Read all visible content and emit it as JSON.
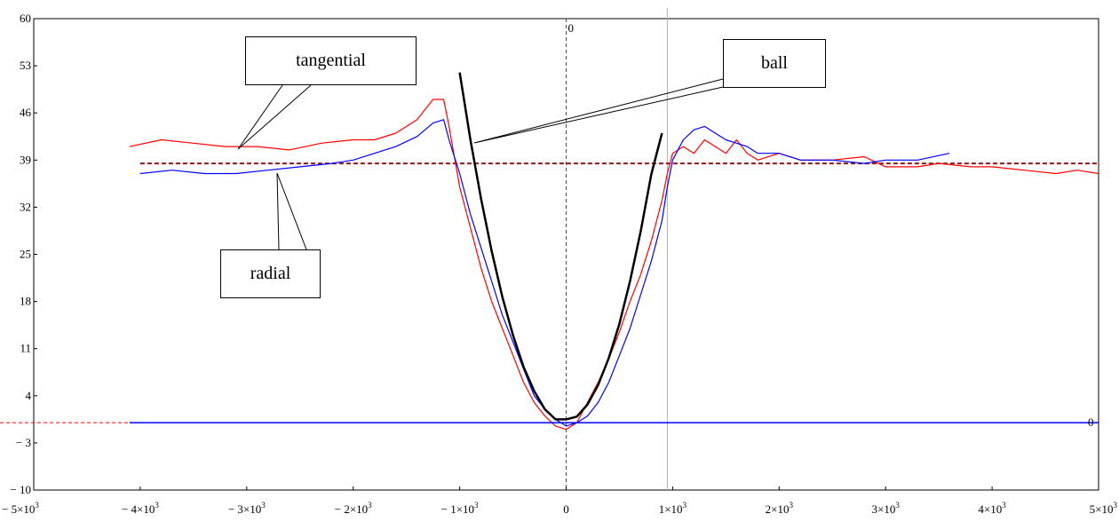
{
  "chart_data": {
    "type": "line",
    "title": "",
    "xlabel": "",
    "ylabel": "",
    "xlim": [
      -5000,
      5000
    ],
    "ylim": [
      -10,
      60
    ],
    "grid": false,
    "x_ticks": [
      {
        "value": -5000,
        "mant": "− 5×10",
        "exp": "3"
      },
      {
        "value": -4000,
        "mant": "− 4×10",
        "exp": "3"
      },
      {
        "value": -3000,
        "mant": "− 3×10",
        "exp": "3"
      },
      {
        "value": -2000,
        "mant": "− 2×10",
        "exp": "3"
      },
      {
        "value": -1000,
        "mant": "− 1×10",
        "exp": "3"
      },
      {
        "value": 0,
        "mant": "0",
        "exp": ""
      },
      {
        "value": 1000,
        "mant": "1×10",
        "exp": "3"
      },
      {
        "value": 2000,
        "mant": "2×10",
        "exp": "3"
      },
      {
        "value": 3000,
        "mant": "3×10",
        "exp": "3"
      },
      {
        "value": 4000,
        "mant": "4×10",
        "exp": "3"
      },
      {
        "value": 5000,
        "mant": "5×10",
        "exp": "3"
      }
    ],
    "y_ticks": [
      {
        "value": 60,
        "label": "60"
      },
      {
        "value": 53,
        "label": "53"
      },
      {
        "value": 46,
        "label": "46"
      },
      {
        "value": 39,
        "label": "39"
      },
      {
        "value": 32,
        "label": "32"
      },
      {
        "value": 25,
        "label": "25"
      },
      {
        "value": 18,
        "label": "18"
      },
      {
        "value": 11,
        "label": "11"
      },
      {
        "value": 4,
        "label": "4"
      },
      {
        "value": -3,
        "label": "− 3"
      },
      {
        "value": -10,
        "label": "− 10"
      }
    ],
    "zero_marker_top": "0",
    "zero_marker_right": "0",
    "reference_lines": {
      "mean_level": 38.5,
      "zero_level": 0,
      "vertical_marker_x": 950,
      "dashed_zero_x": 0
    },
    "series": [
      {
        "name": "tangential",
        "color": "#ff0000",
        "x": [
          -4100,
          -3800,
          -3500,
          -3200,
          -2900,
          -2600,
          -2300,
          -2000,
          -1800,
          -1600,
          -1400,
          -1250,
          -1150,
          -1100,
          -1000,
          -900,
          -800,
          -700,
          -600,
          -500,
          -400,
          -300,
          -200,
          -100,
          0,
          100,
          200,
          300,
          400,
          500,
          600,
          700,
          800,
          900,
          950,
          1000,
          1100,
          1200,
          1300,
          1400,
          1500,
          1600,
          1700,
          1800,
          2000,
          2200,
          2500,
          2800,
          3000,
          3300,
          3500,
          3800,
          4000,
          4300,
          4600,
          4800,
          5000
        ],
        "y": [
          41,
          42,
          41.5,
          41,
          41,
          40.5,
          41.5,
          42,
          42,
          43,
          45,
          48,
          48,
          44,
          35,
          29,
          23,
          18,
          14,
          10,
          6,
          3,
          1,
          -0.5,
          -1,
          0,
          3,
          6,
          9.5,
          13.5,
          18,
          22,
          27,
          33,
          37,
          40,
          41,
          40,
          42,
          41,
          40,
          42,
          40,
          39,
          40,
          39,
          39,
          39.5,
          38,
          38,
          38.5,
          38,
          38,
          37.5,
          37,
          37.5,
          37
        ]
      },
      {
        "name": "radial",
        "color": "#0000ff",
        "x": [
          -4000,
          -3700,
          -3400,
          -3100,
          -2800,
          -2500,
          -2200,
          -2000,
          -1800,
          -1600,
          -1400,
          -1250,
          -1150,
          -1100,
          -1000,
          -900,
          -800,
          -700,
          -600,
          -500,
          -400,
          -300,
          -200,
          -100,
          0,
          100,
          200,
          300,
          400,
          500,
          600,
          700,
          800,
          900,
          950,
          1000,
          1100,
          1200,
          1300,
          1400,
          1500,
          1600,
          1700,
          1800,
          2000,
          2200,
          2500,
          2800,
          3000,
          3300,
          3600
        ],
        "y": [
          37,
          37.5,
          37,
          37,
          37.5,
          38,
          38.5,
          39,
          40,
          41,
          42.5,
          44.5,
          45,
          42,
          37,
          31,
          26,
          21,
          16,
          12,
          8,
          4,
          2,
          0.5,
          -0.5,
          0,
          1,
          3,
          6,
          10,
          14,
          19,
          24,
          30,
          35,
          39,
          42,
          43.5,
          44,
          43,
          42,
          41.5,
          41,
          40,
          40,
          39,
          39,
          38.5,
          39,
          39,
          40
        ]
      },
      {
        "name": "ball",
        "color": "#000000",
        "x": [
          -1000,
          -900,
          -800,
          -700,
          -600,
          -500,
          -400,
          -300,
          -200,
          -100,
          0,
          100,
          200,
          300,
          400,
          500,
          600,
          700,
          800,
          900
        ],
        "y": [
          52,
          42.1,
          33.3,
          25.5,
          18.7,
          13,
          8.3,
          4.7,
          2,
          0.5,
          0.5,
          0.9,
          2.7,
          5.6,
          9.6,
          14.7,
          21,
          28.4,
          36.9,
          43
        ]
      },
      {
        "name": "zero-line",
        "color": "#0000ff",
        "x": [
          -4100,
          5000
        ],
        "y": [
          0,
          0
        ]
      }
    ],
    "annotations": [
      {
        "name": "tangential",
        "text": "tangential"
      },
      {
        "name": "ball",
        "text": "ball"
      },
      {
        "name": "radial",
        "text": "radial"
      }
    ]
  }
}
